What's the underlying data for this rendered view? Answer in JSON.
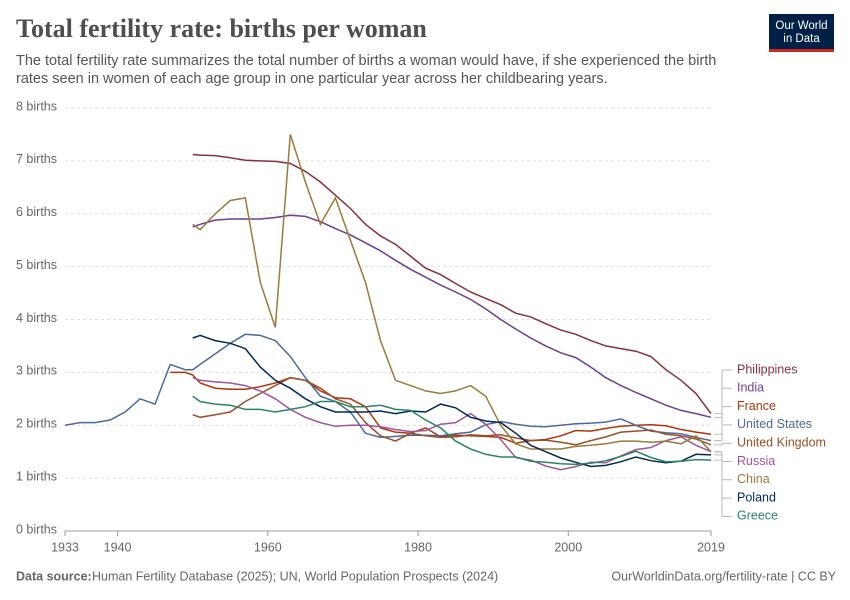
{
  "chart_data": {
    "type": "line",
    "title": "Total fertility rate: births per woman",
    "subtitle": "The total fertility rate summarizes the total number of births a woman would have, if she experienced the birth rates seen in women of each age group in one particular year across her childbearing years.",
    "logo": [
      "Our World",
      "in Data"
    ],
    "source_label": "Data source:",
    "source": "Human Fertility Database (2025); UN, World Population Prospects (2024)",
    "credit": "OurWorldinData.org/fertility-rate | CC BY",
    "xlim": [
      1933,
      2019
    ],
    "xticks": [
      1933,
      1940,
      1960,
      1980,
      2000,
      2019
    ],
    "ylim": [
      0,
      8
    ],
    "yticks": [
      {
        "value": 0,
        "label": "0 births"
      },
      {
        "value": 1,
        "label": "1 births"
      },
      {
        "value": 2,
        "label": "2 births"
      },
      {
        "value": 3,
        "label": "3 births"
      },
      {
        "value": 4,
        "label": "4 births"
      },
      {
        "value": 5,
        "label": "5 births"
      },
      {
        "value": 6,
        "label": "6 births"
      },
      {
        "value": 7,
        "label": "7 births"
      },
      {
        "value": 8,
        "label": "8 births"
      }
    ],
    "grid": true,
    "x": [
      1933,
      1935,
      1937,
      1939,
      1941,
      1943,
      1945,
      1947,
      1949,
      1950,
      1951,
      1953,
      1955,
      1957,
      1959,
      1961,
      1963,
      1965,
      1967,
      1969,
      1971,
      1973,
      1975,
      1977,
      1979,
      1981,
      1983,
      1985,
      1987,
      1989,
      1991,
      1993,
      1995,
      1997,
      1999,
      2001,
      2003,
      2005,
      2007,
      2009,
      2011,
      2013,
      2015,
      2017,
      2019
    ],
    "series": [
      {
        "name": "Philippines",
        "color": "#883039",
        "values": [
          null,
          null,
          null,
          null,
          null,
          null,
          null,
          null,
          null,
          7.12,
          7.11,
          7.1,
          7.06,
          7.01,
          7.0,
          6.99,
          6.95,
          6.8,
          6.6,
          6.35,
          6.1,
          5.8,
          5.58,
          5.42,
          5.2,
          4.97,
          4.85,
          4.68,
          4.52,
          4.4,
          4.28,
          4.12,
          4.05,
          3.92,
          3.8,
          3.72,
          3.6,
          3.5,
          3.45,
          3.4,
          3.3,
          3.05,
          2.85,
          2.6,
          2.22
        ]
      },
      {
        "name": "India",
        "color": "#6D3E91",
        "values": [
          null,
          null,
          null,
          null,
          null,
          null,
          null,
          null,
          null,
          5.75,
          5.8,
          5.88,
          5.9,
          5.9,
          5.9,
          5.93,
          5.97,
          5.95,
          5.85,
          5.72,
          5.6,
          5.45,
          5.3,
          5.12,
          4.95,
          4.8,
          4.65,
          4.52,
          4.38,
          4.2,
          4.0,
          3.82,
          3.65,
          3.5,
          3.37,
          3.28,
          3.1,
          2.9,
          2.75,
          2.62,
          2.5,
          2.38,
          2.28,
          2.22,
          2.15
        ]
      },
      {
        "name": "France",
        "color": "#B13507",
        "values": [
          null,
          null,
          null,
          null,
          null,
          null,
          null,
          3.0,
          3.0,
          2.95,
          2.8,
          2.7,
          2.68,
          2.68,
          2.73,
          2.8,
          2.9,
          2.85,
          2.65,
          2.52,
          2.5,
          2.35,
          1.95,
          1.87,
          1.85,
          1.95,
          1.78,
          1.81,
          1.8,
          1.79,
          1.77,
          1.66,
          1.71,
          1.73,
          1.8,
          1.9,
          1.89,
          1.94,
          1.98,
          2.0,
          2.01,
          1.99,
          1.92,
          1.87,
          1.83
        ]
      },
      {
        "name": "United States",
        "color": "#4C6A9C",
        "values": [
          2.0,
          2.05,
          2.05,
          2.1,
          2.25,
          2.5,
          2.4,
          3.15,
          3.05,
          3.05,
          3.15,
          3.35,
          3.55,
          3.72,
          3.7,
          3.6,
          3.3,
          2.9,
          2.55,
          2.45,
          2.25,
          1.85,
          1.77,
          1.79,
          1.81,
          1.81,
          1.8,
          1.84,
          1.87,
          2.01,
          2.07,
          2.02,
          1.98,
          1.97,
          2.0,
          2.03,
          2.04,
          2.06,
          2.12,
          2.0,
          1.89,
          1.86,
          1.84,
          1.77,
          1.71
        ]
      },
      {
        "name": "United Kingdom",
        "color": "#9A5129",
        "values": [
          null,
          null,
          null,
          null,
          null,
          null,
          null,
          null,
          null,
          2.2,
          2.15,
          2.2,
          2.25,
          2.45,
          2.6,
          2.75,
          2.9,
          2.85,
          2.7,
          2.5,
          2.4,
          2.05,
          1.8,
          1.7,
          1.85,
          1.8,
          1.77,
          1.78,
          1.82,
          1.8,
          1.82,
          1.76,
          1.71,
          1.72,
          1.68,
          1.63,
          1.71,
          1.78,
          1.87,
          1.89,
          1.91,
          1.83,
          1.8,
          1.74,
          1.63
        ]
      },
      {
        "name": "Russia",
        "color": "#A2559C",
        "values": [
          null,
          null,
          null,
          null,
          null,
          null,
          null,
          null,
          null,
          2.9,
          2.85,
          2.82,
          2.8,
          2.75,
          2.65,
          2.5,
          2.3,
          2.15,
          2.05,
          1.98,
          2.0,
          2.0,
          1.97,
          1.92,
          1.88,
          1.9,
          2.02,
          2.05,
          2.22,
          2.02,
          1.73,
          1.39,
          1.34,
          1.23,
          1.16,
          1.22,
          1.3,
          1.29,
          1.42,
          1.54,
          1.58,
          1.71,
          1.78,
          1.62,
          1.5
        ]
      },
      {
        "name": "China",
        "color": "#9C7A3C",
        "values": [
          null,
          null,
          null,
          null,
          null,
          null,
          null,
          null,
          null,
          5.8,
          5.7,
          6.0,
          6.25,
          6.3,
          4.7,
          3.85,
          7.5,
          6.6,
          5.8,
          6.3,
          5.5,
          4.7,
          3.6,
          2.85,
          2.75,
          2.65,
          2.6,
          2.65,
          2.75,
          2.55,
          2.0,
          1.65,
          1.55,
          1.55,
          1.55,
          1.6,
          1.62,
          1.65,
          1.7,
          1.7,
          1.68,
          1.7,
          1.65,
          1.8,
          1.5
        ]
      },
      {
        "name": "Poland",
        "color": "#00295B",
        "values": [
          null,
          null,
          null,
          null,
          null,
          null,
          null,
          null,
          null,
          3.65,
          3.7,
          3.6,
          3.55,
          3.45,
          3.1,
          2.85,
          2.7,
          2.5,
          2.35,
          2.25,
          2.25,
          2.25,
          2.27,
          2.22,
          2.27,
          2.25,
          2.4,
          2.33,
          2.15,
          2.08,
          2.05,
          1.85,
          1.62,
          1.5,
          1.38,
          1.3,
          1.22,
          1.24,
          1.31,
          1.4,
          1.33,
          1.29,
          1.32,
          1.45,
          1.44
        ]
      },
      {
        "name": "Greece",
        "color": "#2C8465",
        "values": [
          null,
          null,
          null,
          null,
          null,
          null,
          null,
          null,
          null,
          2.55,
          2.45,
          2.4,
          2.38,
          2.3,
          2.3,
          2.25,
          2.3,
          2.35,
          2.45,
          2.45,
          2.35,
          2.35,
          2.38,
          2.3,
          2.28,
          2.1,
          1.95,
          1.7,
          1.55,
          1.45,
          1.4,
          1.4,
          1.32,
          1.3,
          1.27,
          1.26,
          1.28,
          1.33,
          1.41,
          1.51,
          1.39,
          1.31,
          1.32,
          1.35,
          1.34
        ]
      }
    ]
  }
}
